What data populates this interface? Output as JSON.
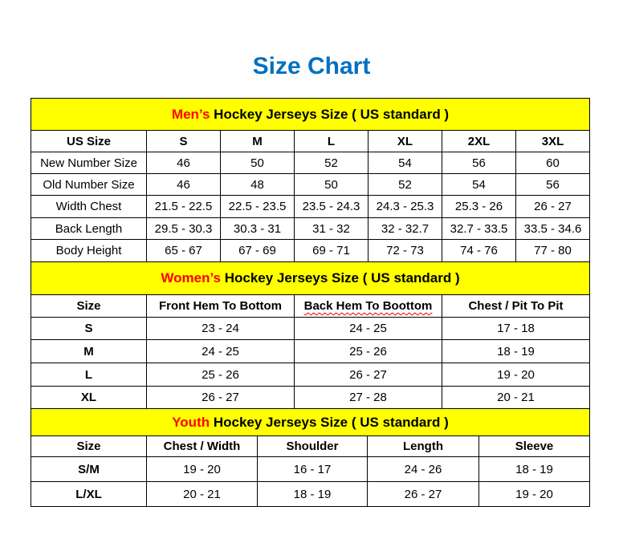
{
  "title": "Size Chart",
  "colors": {
    "title": "#0070c0",
    "header_bg": "#ffff00",
    "accent_red": "#ff0000"
  },
  "men": {
    "heading_prefix": "Men’s",
    "heading_rest": " Hockey Jerseys Size ( US standard )",
    "columns": [
      "US Size",
      "S",
      "M",
      "L",
      "XL",
      "2XL",
      "3XL"
    ],
    "rows": [
      [
        "New Number Size",
        "46",
        "50",
        "52",
        "54",
        "56",
        "60"
      ],
      [
        "Old Number Size",
        "46",
        "48",
        "50",
        "52",
        "54",
        "56"
      ],
      [
        "Width Chest",
        "21.5 - 22.5",
        "22.5 - 23.5",
        "23.5 - 24.3",
        "24.3 - 25.3",
        "25.3 - 26",
        "26 - 27"
      ],
      [
        "Back Length",
        "29.5 - 30.3",
        "30.3 - 31",
        "31 - 32",
        "32 - 32.7",
        "32.7 - 33.5",
        "33.5 - 34.6"
      ],
      [
        "Body Height",
        "65 - 67",
        "67 - 69",
        "69 - 71",
        "72 - 73",
        "74 - 76",
        "77 - 80"
      ]
    ]
  },
  "women": {
    "heading_prefix": "Women’s",
    "heading_rest": " Hockey Jerseys Size ( US standard )",
    "columns": [
      "Size",
      "Front Hem To Bottom",
      "Back Hem To Boottom",
      "Chest / Pit To Pit"
    ],
    "rows": [
      [
        "S",
        "23 - 24",
        "24 - 25",
        "17 - 18"
      ],
      [
        "M",
        "24 - 25",
        "25 - 26",
        "18 - 19"
      ],
      [
        "L",
        "25 - 26",
        "26 - 27",
        "19 - 20"
      ],
      [
        "XL",
        "26 - 27",
        "27 - 28",
        "20 - 21"
      ]
    ]
  },
  "youth": {
    "heading_prefix": "Youth",
    "heading_rest": " Hockey Jerseys Size ( US standard )",
    "columns": [
      "Size",
      "Chest / Width",
      "Shoulder",
      "Length",
      "Sleeve"
    ],
    "rows": [
      [
        "S/M",
        "19 - 20",
        "16 - 17",
        "24 - 26",
        "18 - 19"
      ],
      [
        "L/XL",
        "20 - 21",
        "18 - 19",
        "26 - 27",
        "19 - 20"
      ]
    ]
  }
}
